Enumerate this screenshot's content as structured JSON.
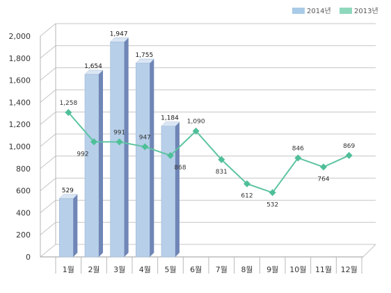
{
  "chart_data": {
    "type": "bar",
    "categories": [
      "1월",
      "2월",
      "3월",
      "4월",
      "5월",
      "6월",
      "7월",
      "8월",
      "9월",
      "10월",
      "11월",
      "12월"
    ],
    "series": [
      {
        "name": "2014년",
        "type": "bar",
        "values": [
          529,
          1654,
          1947,
          1755,
          1184,
          null,
          null,
          null,
          null,
          null,
          null,
          null
        ]
      },
      {
        "name": "2013년",
        "type": "line",
        "values": [
          1258,
          992,
          991,
          947,
          868,
          1090,
          831,
          612,
          532,
          846,
          764,
          869
        ]
      }
    ],
    "data_labels": {
      "2014년": [
        "529",
        "1,654",
        "1,947",
        "1,755",
        "1,184",
        "",
        "",
        "",
        "",
        "",
        "",
        ""
      ],
      "2013년": [
        "1,258",
        "992",
        "991",
        "947",
        "868",
        "1,090",
        "831",
        "612",
        "532",
        "846",
        "764",
        "869"
      ]
    },
    "yticks": [
      "0",
      "200",
      "400",
      "600",
      "800",
      "1,000",
      "1,200",
      "1,400",
      "1,600",
      "1,800",
      "2,000"
    ],
    "ylim": [
      0,
      2000
    ],
    "grid": true,
    "legend_position": "top-right",
    "colors": {
      "bar_front": "#b7cfe9",
      "bar_side": "#6f86b6",
      "bar_top": "#dbe6f4",
      "line": "#5cc4a0",
      "marker": "#4fbf98",
      "legend_2014": "#a9cbe8",
      "legend_2013": "#8fd8be"
    }
  }
}
